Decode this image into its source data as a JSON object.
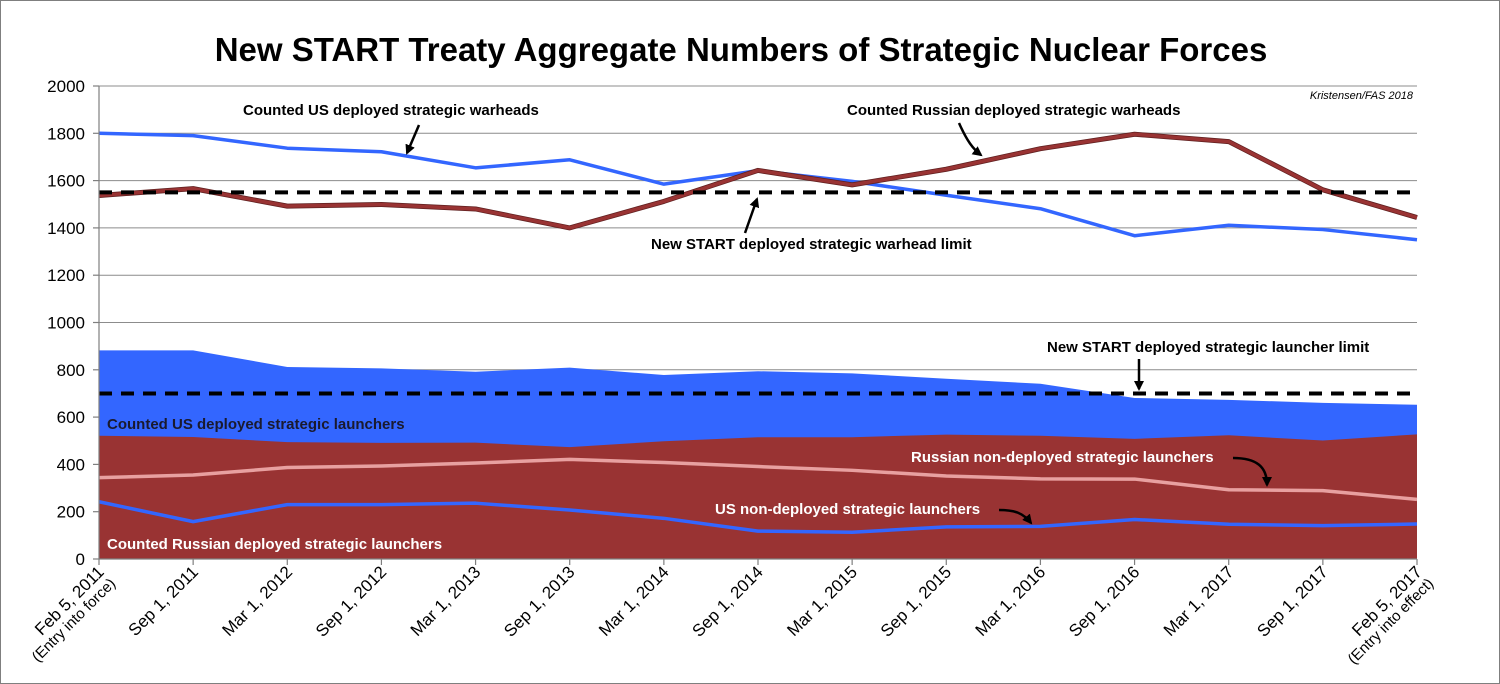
{
  "chart_data": {
    "type": "line",
    "title": "New START Treaty Aggregate Numbers of Strategic Nuclear Forces",
    "credit": "Kristensen/FAS 2018",
    "xlabel": "",
    "ylabel": "",
    "ylim": [
      0,
      2000
    ],
    "yticks": [
      "0",
      "200",
      "400",
      "600",
      "800",
      "1000",
      "1200",
      "1400",
      "1600",
      "1800",
      "2000"
    ],
    "grid": "horizontal",
    "categories": [
      {
        "label": "Feb 5, 2011",
        "sub": "(Entry into force)"
      },
      {
        "label": "Sep 1, 2011",
        "sub": ""
      },
      {
        "label": "Mar 1, 2012",
        "sub": ""
      },
      {
        "label": "Sep 1, 2012",
        "sub": ""
      },
      {
        "label": "Mar 1, 2013",
        "sub": ""
      },
      {
        "label": "Sep 1, 2013",
        "sub": ""
      },
      {
        "label": "Mar 1, 2014",
        "sub": ""
      },
      {
        "label": "Sep 1, 2014",
        "sub": ""
      },
      {
        "label": "Mar 1, 2015",
        "sub": ""
      },
      {
        "label": "Sep 1, 2015",
        "sub": ""
      },
      {
        "label": "Mar 1, 2016",
        "sub": ""
      },
      {
        "label": "Sep 1, 2016",
        "sub": ""
      },
      {
        "label": "Mar 1, 2017",
        "sub": ""
      },
      {
        "label": "Sep 1, 2017",
        "sub": ""
      },
      {
        "label": "Feb 5, 2017",
        "sub": "(Entry into effect)"
      }
    ],
    "series": [
      {
        "name": "Counted US deployed strategic warheads",
        "kind": "line",
        "color": "#3366ff",
        "values": [
          1800,
          1790,
          1737,
          1722,
          1654,
          1688,
          1585,
          1642,
          1597,
          1538,
          1481,
          1367,
          1411,
          1393,
          1350
        ]
      },
      {
        "name": "Counted Russian deployed strategic warheads",
        "kind": "line",
        "color": "#993333",
        "values": [
          1537,
          1566,
          1492,
          1499,
          1480,
          1400,
          1512,
          1643,
          1582,
          1648,
          1735,
          1796,
          1765,
          1561,
          1444
        ]
      },
      {
        "name": "Counted US deployed strategic launchers",
        "kind": "area",
        "color": "#3366ff",
        "values": [
          882,
          882,
          812,
          806,
          792,
          809,
          778,
          794,
          785,
          762,
          741,
          681,
          673,
          660,
          652
        ]
      },
      {
        "name": "Counted Russian deployed strategic launchers",
        "kind": "area",
        "color": "#993333",
        "values": [
          521,
          516,
          494,
          491,
          492,
          473,
          498,
          515,
          515,
          526,
          521,
          508,
          523,
          501,
          527
        ]
      },
      {
        "name": "Russian non-deployed strategic launchers",
        "kind": "line",
        "color": "#e8a0a0",
        "values": [
          344,
          355,
          387,
          393,
          406,
          421,
          408,
          391,
          375,
          351,
          339,
          338,
          293,
          289,
          252
        ]
      },
      {
        "name": "US non-deployed strategic launchers",
        "kind": "line",
        "color": "#3366ff",
        "values": [
          242,
          158,
          230,
          230,
          236,
          207,
          172,
          118,
          113,
          136,
          138,
          167,
          147,
          141,
          148
        ]
      }
    ],
    "limits": [
      {
        "name": "New START deployed strategic warhead limit",
        "value": 1550,
        "color": "#000000",
        "style": "dashed"
      },
      {
        "name": "New START deployed strategic launcher limit",
        "value": 700,
        "color": "#000000",
        "style": "dashed"
      }
    ],
    "annotations": [
      {
        "text": "Counted US deployed strategic warheads"
      },
      {
        "text": "Counted Russian deployed strategic warheads"
      },
      {
        "text": "New START deployed strategic warhead limit"
      },
      {
        "text": "New START deployed strategic launcher limit"
      },
      {
        "text": "Counted US deployed strategic launchers"
      },
      {
        "text": "Russian non-deployed strategic launchers"
      },
      {
        "text": "US non-deployed strategic launchers"
      },
      {
        "text": "Counted Russian deployed strategic launchers"
      }
    ]
  }
}
